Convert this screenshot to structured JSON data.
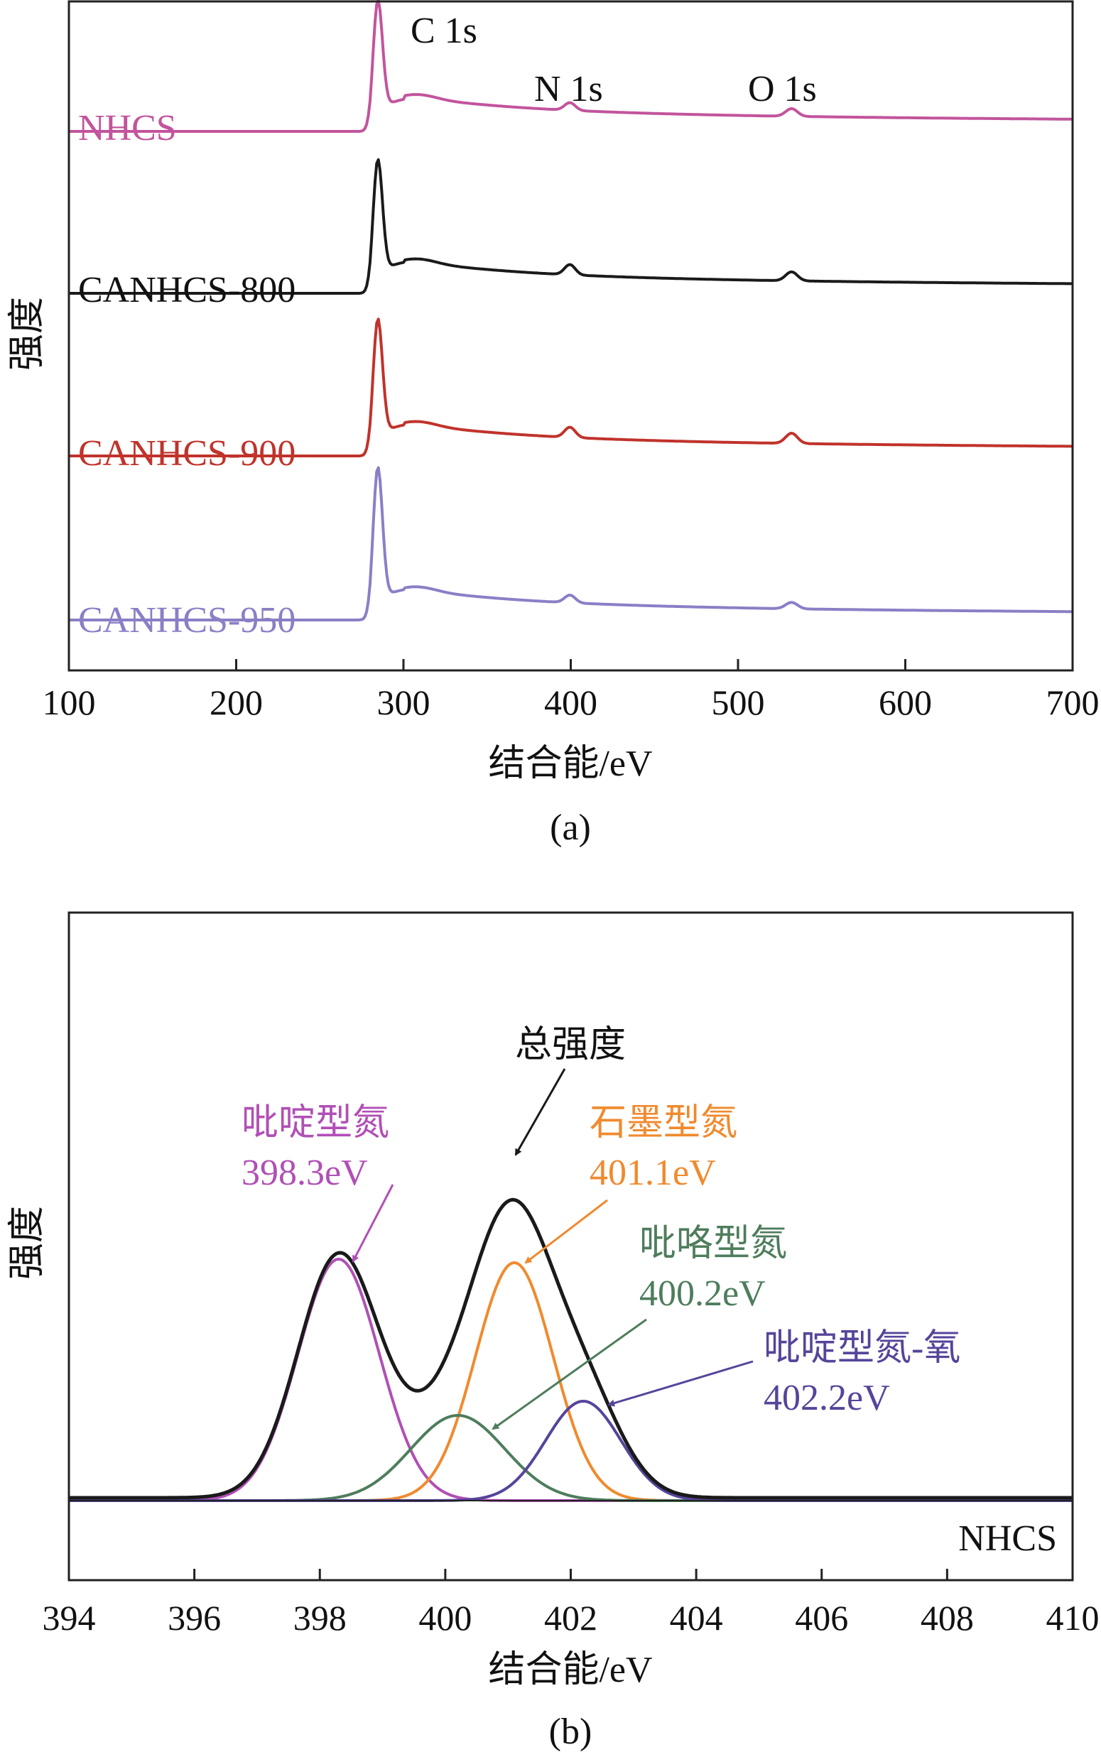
{
  "chart_data": [
    {
      "type": "line",
      "panel_label": "(a)",
      "xlabel": "结合能/eV",
      "ylabel": "强度",
      "xlim": [
        100,
        700
      ],
      "xticks": [
        100,
        200,
        300,
        400,
        500,
        600,
        700
      ],
      "y_ticks_shown": false,
      "grid": false,
      "peak_labels": [
        {
          "text": "C 1s",
          "x": 284.6
        },
        {
          "text": "N 1s",
          "x": 399.5
        },
        {
          "text": "O 1s",
          "x": 532.0
        }
      ],
      "series": [
        {
          "name": "NHCS",
          "color": "#c2549c"
        },
        {
          "name": "CANHCS-800",
          "color": "#1a1a1a"
        },
        {
          "name": "CANHCS-900",
          "color": "#c0332b"
        },
        {
          "name": "CANHCS-950",
          "color": "#8a7fc6"
        }
      ]
    },
    {
      "type": "line",
      "panel_label": "(b)",
      "xlabel": "结合能/eV",
      "ylabel": "强度",
      "xlim": [
        394,
        410
      ],
      "xticks": [
        394,
        396,
        398,
        400,
        402,
        404,
        406,
        408,
        410
      ],
      "y_ticks_shown": false,
      "grid": false,
      "sample_label": "NHCS",
      "series": [
        {
          "name_line1": "总强度",
          "name_line2": "",
          "center": null,
          "color": "#1a1a1a"
        },
        {
          "name_line1": "吡啶型氮",
          "name_line2": "398.3eV",
          "center": 398.3,
          "color": "#b14fb6"
        },
        {
          "name_line1": "石墨型氮",
          "name_line2": "401.1eV",
          "center": 401.1,
          "color": "#f08a2e"
        },
        {
          "name_line1": "吡咯型氮",
          "name_line2": "400.2eV",
          "center": 400.2,
          "color": "#4e7d5c"
        },
        {
          "name_line1": "吡啶型氮-氧",
          "name_line2": "402.2eV",
          "center": 402.2,
          "color": "#56449a"
        }
      ]
    }
  ]
}
